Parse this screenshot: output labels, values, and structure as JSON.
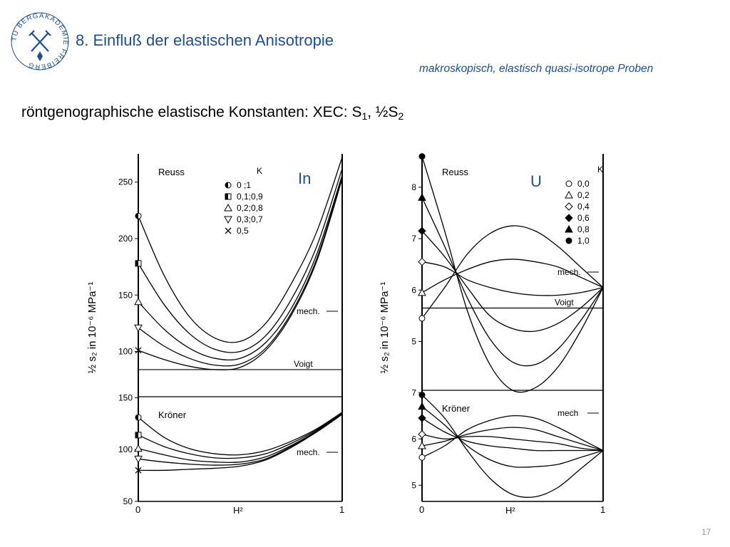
{
  "header": {
    "logo_text": "TU BERGAKADEMIE FREIBERG",
    "title": "8. Einfluß der elastischen Anisotropie",
    "subtitle": "makroskopisch, elastisch quasi-isotrope Proben",
    "heading_main": "röntgenographische elastische Konstanten: XEC: S",
    "heading_sub1": "1",
    "heading_mid": ", ½S",
    "heading_sub2": "2"
  },
  "overlays": {
    "left_label": "In",
    "right_label": "U"
  },
  "page_number": "17",
  "colors": {
    "accent": "#1f4e8c",
    "ink": "#000000",
    "page_number": "#9a9a9a"
  },
  "chart_data": [
    {
      "type": "line",
      "x": [
        0,
        0.125,
        0.25,
        0.375,
        0.5,
        0.625,
        0.75,
        0.875,
        1
      ],
      "xlabel": "H²",
      "ylabel": "½ s₂ in 10⁻⁶ MPa⁻¹",
      "x_ticks": [
        "0",
        "1"
      ],
      "legend": {
        "header": "K",
        "entries": [
          {
            "marker": "half-circle",
            "label": "0 ;1"
          },
          {
            "marker": "half-square",
            "label": "0,1;0,9"
          },
          {
            "marker": "triangle-up",
            "label": "0,2;0,8"
          },
          {
            "marker": "triangle-down",
            "label": "0,3;0,7"
          },
          {
            "marker": "x",
            "label": "0,5"
          }
        ]
      },
      "panels": [
        {
          "name": "Reuss",
          "yticks": [
            "100",
            "150",
            "200",
            "250"
          ],
          "ylim": [
            60,
            275
          ],
          "series": [
            {
              "values": [
                220,
                168,
                131,
                112,
                109,
                125,
                160,
                206,
                272
              ]
            },
            {
              "values": [
                178,
                142,
                116,
                102,
                100,
                114,
                146,
                193,
                262
              ]
            },
            {
              "values": [
                144,
                120,
                103,
                94,
                94,
                108,
                138,
                186,
                256
              ]
            },
            {
              "values": [
                121,
                105,
                94,
                88,
                89,
                103,
                134,
                182,
                254
              ]
            },
            {
              "values": [
                101,
                93,
                87,
                84,
                86,
                101,
                132,
                180,
                253
              ]
            }
          ],
          "reference": {
            "label": "Voigt",
            "value": 84
          },
          "mech_label": "mech."
        },
        {
          "name": "Kröner",
          "yticks": [
            "50",
            "100",
            "150"
          ],
          "ylim": [
            50,
            151
          ],
          "series": [
            {
              "values": [
                131,
                112,
                101,
                96,
                95,
                99,
                108,
                120,
                136
              ]
            },
            {
              "values": [
                114,
                103,
                96,
                92,
                92,
                96,
                106,
                119,
                135
              ]
            },
            {
              "values": [
                101,
                95,
                90,
                88,
                88,
                93,
                104,
                118,
                135
              ]
            },
            {
              "values": [
                91,
                88,
                86,
                85,
                86,
                91,
                103,
                117,
                134
              ]
            },
            {
              "values": [
                80,
                80,
                81,
                82,
                84,
                90,
                102,
                117,
                134
              ]
            }
          ],
          "mech_label": "mech."
        }
      ]
    },
    {
      "type": "line",
      "x": [
        0,
        0.125,
        0.25,
        0.375,
        0.5,
        0.625,
        0.75,
        0.875,
        1
      ],
      "xlabel": "H²",
      "ylabel": "½ s₂ in 10⁻⁶ MPa⁻¹",
      "x_ticks": [
        "0",
        "1"
      ],
      "legend": {
        "header": "K",
        "entries": [
          {
            "marker": "circle-open",
            "label": "0,0"
          },
          {
            "marker": "triangle-open",
            "label": "0,2"
          },
          {
            "marker": "diamond-open",
            "label": "0,4"
          },
          {
            "marker": "diamond-filled",
            "label": "0,6"
          },
          {
            "marker": "triangle-filled",
            "label": "0,8"
          },
          {
            "marker": "circle-filled",
            "label": "1,0"
          }
        ]
      },
      "panels": [
        {
          "name": "Reuss",
          "yticks": [
            "5",
            "6",
            "7",
            "8"
          ],
          "ylim": [
            4.05,
            8.65
          ],
          "series": [
            {
              "values": [
                5.45,
                6.05,
                6.7,
                7.1,
                7.25,
                7.15,
                6.85,
                6.45,
                6.05
              ]
            },
            {
              "values": [
                5.95,
                6.2,
                6.4,
                6.55,
                6.6,
                6.55,
                6.45,
                6.25,
                6.05
              ]
            },
            {
              "values": [
                6.55,
                6.45,
                6.2,
                6.05,
                5.95,
                5.9,
                5.9,
                5.95,
                6.05
              ]
            },
            {
              "values": [
                7.15,
                6.65,
                6.05,
                5.5,
                5.25,
                5.2,
                5.35,
                5.65,
                6.05
              ]
            },
            {
              "values": [
                7.8,
                6.85,
                5.85,
                5.05,
                4.6,
                4.55,
                4.85,
                5.4,
                6.05
              ]
            },
            {
              "values": [
                8.6,
                7.15,
                5.6,
                4.55,
                4.05,
                4.1,
                4.5,
                5.2,
                6.05
              ]
            }
          ],
          "reference": {
            "label": "Voigt",
            "value": 5.65
          },
          "mech_label": "mech."
        },
        {
          "name": "Kröner",
          "yticks": [
            "5",
            "6",
            "7"
          ],
          "ylim": [
            4.65,
            7.05
          ],
          "series": [
            {
              "values": [
                5.6,
                5.85,
                6.2,
                6.4,
                6.5,
                6.45,
                6.25,
                6.0,
                5.75
              ]
            },
            {
              "values": [
                5.85,
                5.95,
                6.1,
                6.2,
                6.25,
                6.2,
                6.05,
                5.9,
                5.75
              ]
            },
            {
              "values": [
                6.1,
                6.0,
                6.05,
                6.05,
                6.0,
                5.95,
                5.9,
                5.8,
                5.75
              ]
            },
            {
              "values": [
                6.45,
                6.15,
                5.95,
                5.85,
                5.8,
                5.75,
                5.75,
                5.75,
                5.75
              ]
            },
            {
              "values": [
                6.7,
                6.3,
                5.85,
                5.55,
                5.4,
                5.4,
                5.45,
                5.6,
                5.75
              ]
            },
            {
              "values": [
                6.95,
                6.45,
                5.75,
                5.15,
                4.8,
                4.75,
                4.95,
                5.35,
                5.75
              ]
            }
          ],
          "mech_label": "mech"
        }
      ]
    }
  ]
}
